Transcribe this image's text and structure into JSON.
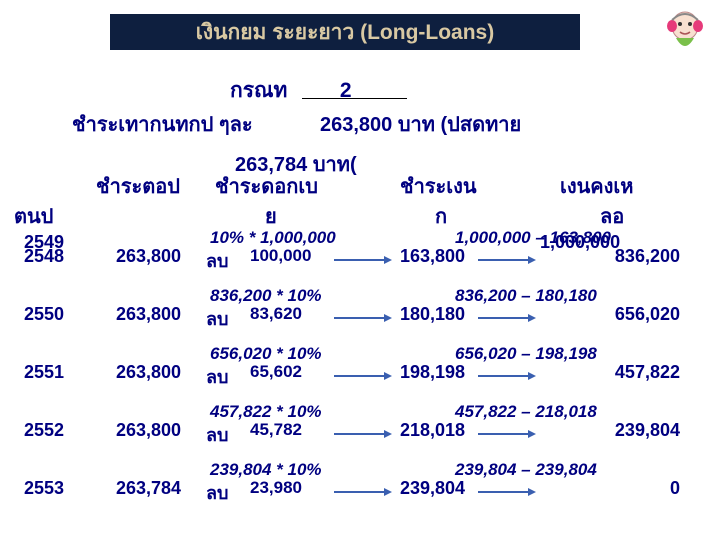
{
  "title": "เงินกยม       ระยะยาว (Long-Loans)",
  "case_label": "กรณท",
  "case_num": "2",
  "info_left": "ชำระเทากนทกป ๆละ",
  "info_right": "263,800 บาท (ปสดทาย",
  "sub_info": "263,784 บาท(",
  "headers": {
    "c1": "ชำระตอป",
    "c2": "ชำระดอกเบ",
    "c3": "ชำระเงน",
    "c4": "เงนคงเห"
  },
  "headers2": {
    "c0": "ตนป",
    "c2": "ย",
    "c3": "ก",
    "c4": "ลอ"
  },
  "lb": "ลบ",
  "arrow_color": "#3a5fb0",
  "rows": [
    {
      "year": "2548",
      "year_alt": "2549",
      "pay": "263,800",
      "formula": "10% * 1,000,000",
      "interest": "100,000",
      "principal": "163,800",
      "formula_r": "1,000,000 – 163,800",
      "balance": "836,200",
      "balance_alt": "1,000,000"
    },
    {
      "year": "2550",
      "pay": "263,800",
      "formula": "836,200 * 10%",
      "interest": "83,620",
      "principal": "180,180",
      "formula_r": "836,200 – 180,180",
      "balance": "656,020"
    },
    {
      "year": "2551",
      "pay": "263,800",
      "formula": "656,020 * 10%",
      "interest": "65,602",
      "principal": "198,198",
      "formula_r": "656,020 – 198,198",
      "balance": "457,822"
    },
    {
      "year": "2552",
      "pay": "263,800",
      "formula": "457,822 * 10%",
      "interest": "45,782",
      "principal": "218,018",
      "formula_r": "457,822 – 218,018",
      "balance": "239,804"
    },
    {
      "year": "2553",
      "pay": "263,784",
      "formula": "239,804 * 10%",
      "interest": "23,980",
      "principal": "239,804",
      "formula_r": "239,804 – 239,804",
      "balance": "0"
    }
  ]
}
